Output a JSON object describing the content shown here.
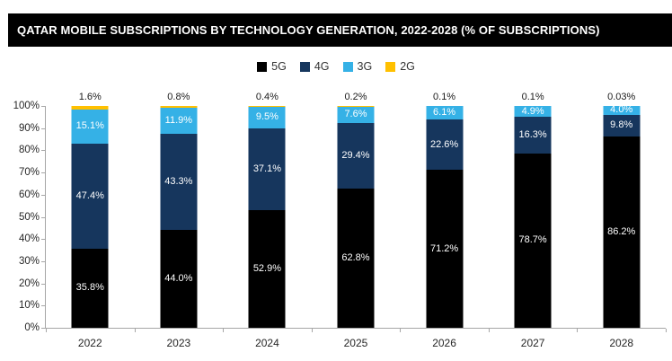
{
  "title": "QATAR MOBILE SUBSCRIPTIONS BY TECHNOLOGY GENERATION, 2022-2028 (% OF SUBSCRIPTIONS)",
  "colors": {
    "title_bar_bg": "#000000",
    "title_text": "#ffffff",
    "axis_line": "#A6A6A6",
    "axis_text": "#262626",
    "inside_label_text": "#ffffff"
  },
  "chart_data": {
    "type": "bar",
    "subtype": "stacked-100",
    "title": "QATAR MOBILE SUBSCRIPTIONS BY TECHNOLOGY GENERATION, 2022-2028 (% OF SUBSCRIPTIONS)",
    "categories": [
      "2022",
      "2023",
      "2024",
      "2025",
      "2026",
      "2027",
      "2028"
    ],
    "series": [
      {
        "name": "5G",
        "color": "#000000",
        "values": [
          35.8,
          44.0,
          52.9,
          62.8,
          71.2,
          78.7,
          86.2
        ],
        "labels": [
          "35.8%",
          "44.0%",
          "52.9%",
          "62.8%",
          "71.2%",
          "78.7%",
          "86.2%"
        ],
        "label_position": "inside"
      },
      {
        "name": "4G",
        "color": "#16365D",
        "values": [
          47.4,
          43.3,
          37.1,
          29.4,
          22.6,
          16.3,
          9.8
        ],
        "labels": [
          "47.4%",
          "43.3%",
          "37.1%",
          "29.4%",
          "22.6%",
          "16.3%",
          "9.8%"
        ],
        "label_position": "inside"
      },
      {
        "name": "3G",
        "color": "#35B1E6",
        "values": [
          15.1,
          11.9,
          9.5,
          7.6,
          6.1,
          4.9,
          4.0
        ],
        "labels": [
          "15.1%",
          "11.9%",
          "9.5%",
          "7.6%",
          "6.1%",
          "4.9%",
          "4.0%"
        ],
        "label_position": "inside"
      },
      {
        "name": "2G",
        "color": "#FFC000",
        "values": [
          1.6,
          0.8,
          0.4,
          0.2,
          0.1,
          0.1,
          0.03
        ],
        "labels": [
          "1.6%",
          "0.8%",
          "0.4%",
          "0.2%",
          "0.1%",
          "0.1%",
          "0.03%"
        ],
        "label_position": "above"
      }
    ],
    "y_axis": {
      "min": 0,
      "max": 100,
      "step": 10,
      "tick_labels": [
        "0%",
        "10%",
        "20%",
        "30%",
        "40%",
        "50%",
        "60%",
        "70%",
        "80%",
        "90%",
        "100%"
      ]
    },
    "xlabel": "",
    "ylabel": "",
    "legend_position": "top",
    "grid": false
  }
}
